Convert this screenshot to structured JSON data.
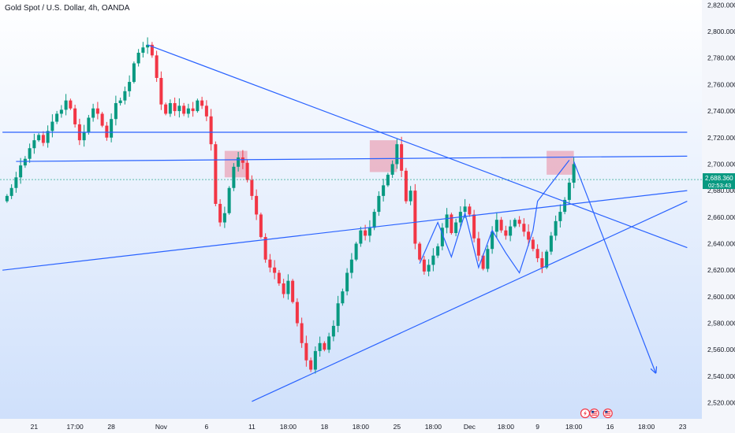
{
  "chart_data": {
    "type": "candlestick",
    "title": "Gold Spot / U.S. Dollar, 4h, OANDA",
    "ylim": [
      2515,
      2822
    ],
    "yticks": [
      "2,520.000",
      "2,540.000",
      "2,560.000",
      "2,580.000",
      "2,600.000",
      "2,620.000",
      "2,640.000",
      "2,660.000",
      "2,680.000",
      "2,700.000",
      "2,720.000",
      "2,740.000",
      "2,760.000",
      "2,780.000",
      "2,800.000",
      "2,820.000"
    ],
    "xticks": [
      {
        "i": 6,
        "label": "21"
      },
      {
        "i": 15,
        "label": "17:00"
      },
      {
        "i": 23,
        "label": "28"
      },
      {
        "i": 34,
        "label": "Nov"
      },
      {
        "i": 44,
        "label": "6"
      },
      {
        "i": 54,
        "label": "11"
      },
      {
        "i": 62,
        "label": "18:00"
      },
      {
        "i": 70,
        "label": "18"
      },
      {
        "i": 78,
        "label": "18:00"
      },
      {
        "i": 86,
        "label": "25"
      },
      {
        "i": 94,
        "label": "18:00"
      },
      {
        "i": 102,
        "label": "Dec"
      },
      {
        "i": 110,
        "label": "18:00"
      },
      {
        "i": 117,
        "label": "9"
      },
      {
        "i": 125,
        "label": "18:00"
      },
      {
        "i": 133,
        "label": "16"
      },
      {
        "i": 141,
        "label": "18:00"
      },
      {
        "i": 149,
        "label": "23"
      }
    ],
    "last_price": "2,688.360",
    "countdown": "02:53:43",
    "candles": [
      2676,
      2682,
      2690,
      2699,
      2704,
      2712,
      2718,
      2722,
      2716,
      2725,
      2732,
      2738,
      2741,
      2748,
      2742,
      2730,
      2718,
      2724,
      2735,
      2742,
      2738,
      2729,
      2720,
      2734,
      2746,
      2748,
      2755,
      2762,
      2776,
      2784,
      2788,
      2790,
      2782,
      2765,
      2745,
      2738,
      2746,
      2740,
      2744,
      2738,
      2742,
      2740,
      2748,
      2744,
      2736,
      2715,
      2670,
      2656,
      2663,
      2682,
      2698,
      2705,
      2701,
      2688,
      2676,
      2662,
      2645,
      2628,
      2622,
      2618,
      2610,
      2602,
      2612,
      2596,
      2580,
      2565,
      2552,
      2545,
      2559,
      2565,
      2560,
      2570,
      2578,
      2595,
      2604,
      2618,
      2628,
      2640,
      2650,
      2646,
      2652,
      2664,
      2676,
      2684,
      2692,
      2700,
      2715,
      2695,
      2672,
      2680,
      2640,
      2628,
      2619,
      2624,
      2631,
      2638,
      2652,
      2662,
      2648,
      2656,
      2664,
      2668,
      2662,
      2644,
      2631,
      2621,
      2636,
      2649,
      2658,
      2650,
      2646,
      2653,
      2658,
      2655,
      2649,
      2643,
      2636,
      2629,
      2622,
      2634,
      2646,
      2657,
      2664,
      2673,
      2686,
      2700
    ]
  }
}
